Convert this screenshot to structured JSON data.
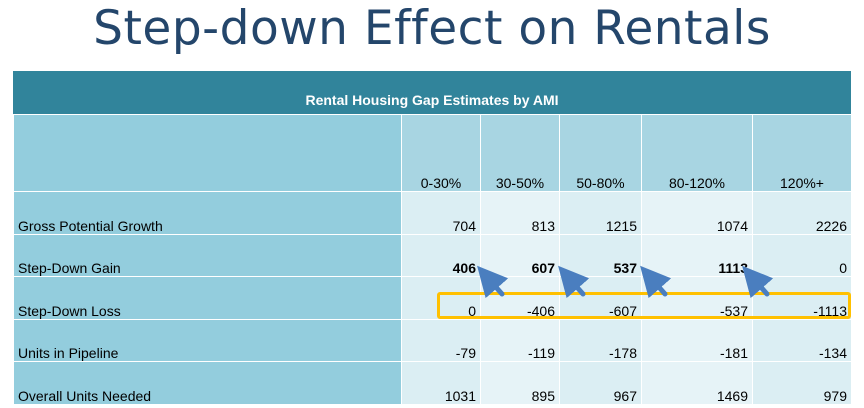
{
  "slide": {
    "title": "Step-down Effect on Rentals"
  },
  "table": {
    "title": "Rental Housing Gap Estimates by AMI",
    "columns": [
      "0-30%",
      "30-50%",
      "50-80%",
      "80-120%",
      "120%+"
    ],
    "rows": [
      {
        "label": "Gross Potential Growth",
        "values": [
          "704",
          "813",
          "1215",
          "1074",
          "2226"
        ],
        "bold": [
          false,
          false,
          false,
          false,
          false
        ]
      },
      {
        "label": "Step-Down Gain",
        "values": [
          "406",
          "607",
          "537",
          "1113",
          "0"
        ],
        "bold": [
          true,
          true,
          true,
          true,
          false
        ]
      },
      {
        "label": "Step-Down Loss",
        "values": [
          "0",
          "-406",
          "-607",
          "-537",
          "-1113"
        ],
        "bold": [
          false,
          false,
          false,
          false,
          false
        ]
      },
      {
        "label": "Units in Pipeline",
        "values": [
          "-79",
          "-119",
          "-178",
          "-181",
          "-134"
        ],
        "bold": [
          false,
          false,
          false,
          false,
          false
        ]
      },
      {
        "label": "Overall Units Needed",
        "values": [
          "1031",
          "895",
          "967",
          "1469",
          "979"
        ],
        "bold": [
          false,
          false,
          false,
          false,
          false
        ]
      }
    ]
  },
  "annotations": {
    "highlight_color": "#ffc000",
    "arrow_color": "#4a7ebf",
    "arrow_icon": "arrow-up-left-icon"
  },
  "colors": {
    "title": "#24466b",
    "header_bar": "#31849b",
    "label_cells": "#93cddd",
    "value_cells": "#dbeef3"
  }
}
